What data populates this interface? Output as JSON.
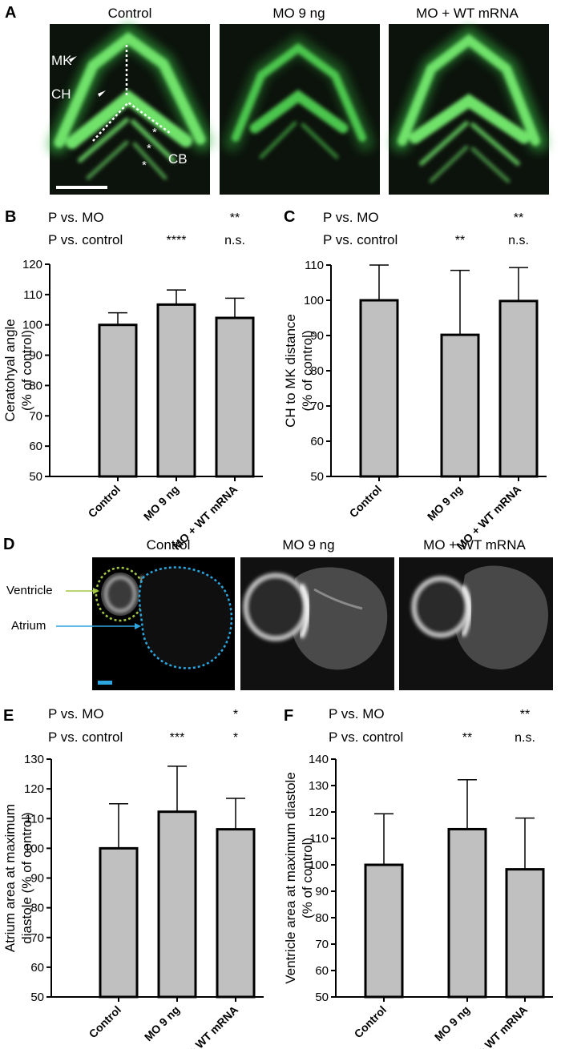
{
  "panelA": {
    "letter": "A",
    "titles": [
      "Control",
      "MO 9 ng",
      "MO + WT mRNA"
    ],
    "labels": {
      "mk": "MK",
      "ch": "CH",
      "cb": "CB"
    },
    "asterisk": "*"
  },
  "panelD": {
    "letter": "D",
    "titles": [
      "Control",
      "MO 9 ng",
      "MO + WT mRNA"
    ],
    "ventricle_label": "Ventricle",
    "atrium_label": "Atrium",
    "colors": {
      "ventricle": "#a4c845",
      "atrium": "#2ba6de",
      "scale": "#2ba6de"
    }
  },
  "chart_data": [
    {
      "panel": "B",
      "type": "bar",
      "categories": [
        "Control",
        "MO 9 ng",
        "MO + WT mRNA"
      ],
      "values": [
        100,
        106.7,
        102.3
      ],
      "errors": [
        4,
        4.8,
        6.5
      ],
      "ylabel": "Ceratohyal angle\n(% of control)",
      "ylim": [
        50,
        120
      ],
      "yticks": [
        50,
        60,
        70,
        80,
        90,
        100,
        110,
        120
      ],
      "stats_rows": [
        {
          "label": "P vs. MO",
          "marks": [
            "",
            "",
            "**"
          ]
        },
        {
          "label": "P vs. control",
          "marks": [
            "",
            "****",
            "n.s."
          ]
        }
      ],
      "bar_color": "#c0c0c0"
    },
    {
      "panel": "C",
      "type": "bar",
      "categories": [
        "Control",
        "MO 9 ng",
        "MO + WT mRNA"
      ],
      "values": [
        100,
        90.2,
        99.8
      ],
      "errors": [
        10,
        18.3,
        9.5
      ],
      "ylabel": "CH to MK distance\n(% of control)",
      "ylim": [
        50,
        110
      ],
      "yticks": [
        50,
        60,
        70,
        80,
        90,
        100,
        110
      ],
      "stats_rows": [
        {
          "label": "P vs. MO",
          "marks": [
            "",
            "",
            "**"
          ]
        },
        {
          "label": "P vs. control",
          "marks": [
            "",
            "**",
            "n.s."
          ]
        }
      ],
      "bar_color": "#c0c0c0"
    },
    {
      "panel": "E",
      "type": "bar",
      "categories": [
        "Control",
        "MO 9 ng",
        "MO + WT mRNA"
      ],
      "values": [
        100,
        112.3,
        106.4
      ],
      "errors": [
        15,
        15.3,
        10.4
      ],
      "ylabel": "Atrium area at maximum\ndiastole (% of control)",
      "ylim": [
        50,
        130
      ],
      "yticks": [
        50,
        60,
        70,
        80,
        90,
        100,
        110,
        120,
        130
      ],
      "stats_rows": [
        {
          "label": "P vs. MO",
          "marks": [
            "",
            "",
            "*"
          ]
        },
        {
          "label": "P vs. control",
          "marks": [
            "",
            "***",
            "*"
          ]
        }
      ],
      "bar_color": "#c0c0c0"
    },
    {
      "panel": "F",
      "type": "bar",
      "categories": [
        "Control",
        "MO 9 ng",
        "MO + WT mRNA"
      ],
      "values": [
        100,
        113.5,
        98.3
      ],
      "errors": [
        19.3,
        18.7,
        19.4
      ],
      "ylabel": "Ventricle area at maximum diastole\n(% of control)",
      "ylim": [
        50,
        140
      ],
      "yticks": [
        50,
        60,
        70,
        80,
        90,
        100,
        110,
        120,
        130,
        140
      ],
      "stats_rows": [
        {
          "label": "P vs. MO",
          "marks": [
            "",
            "",
            "**"
          ]
        },
        {
          "label": "P vs. control",
          "marks": [
            "",
            "**",
            "n.s."
          ]
        }
      ],
      "bar_color": "#c0c0c0"
    }
  ]
}
